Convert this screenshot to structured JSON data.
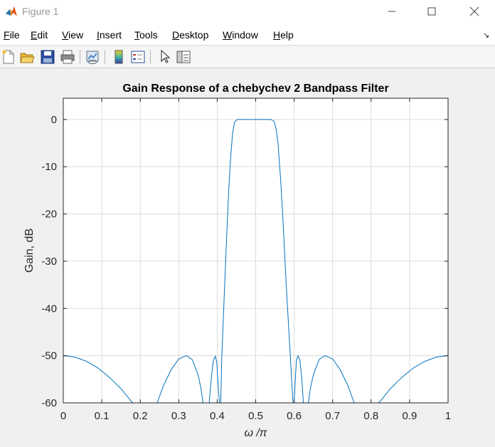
{
  "window": {
    "title": "Figure 1"
  },
  "menu": {
    "items": [
      {
        "acc": "F",
        "rest": "ile"
      },
      {
        "acc": "E",
        "rest": "dit"
      },
      {
        "acc": "V",
        "rest": "iew"
      },
      {
        "acc": "I",
        "rest": "nsert"
      },
      {
        "acc": "T",
        "rest": "ools"
      },
      {
        "acc": "D",
        "rest": "esktop"
      },
      {
        "acc": "W",
        "rest": "indow"
      },
      {
        "acc": "H",
        "rest": "elp"
      }
    ]
  },
  "toolbar": {
    "icons": [
      "new-figure-icon",
      "open-file-icon",
      "save-icon",
      "print-icon",
      "link-plot-icon",
      "insert-colorbar-icon",
      "insert-legend-icon",
      "edit-plot-arrow-icon",
      "property-inspector-icon"
    ]
  },
  "chart_data": {
    "type": "line",
    "title": "Gain Response of a chebychev 2 Bandpass Filter",
    "xlabel": "ω /π",
    "ylabel": "Gain, dB",
    "xlim": [
      0,
      1
    ],
    "ylim": [
      -60,
      4.5
    ],
    "xticks": [
      "0",
      "0.1",
      "0.2",
      "0.3",
      "0.4",
      "0.5",
      "0.6",
      "0.7",
      "0.8",
      "0.9",
      "1"
    ],
    "yticks": [
      "0",
      "-10",
      "-20",
      "-30",
      "-40",
      "-50",
      "-60"
    ],
    "grid": true,
    "line_color": "#0072bd",
    "series": [
      {
        "segments": [
          [
            [
              0,
              -50
            ],
            [
              0.03,
              -50.3
            ],
            [
              0.06,
              -51.2
            ],
            [
              0.09,
              -52.6
            ],
            [
              0.12,
              -54.6
            ],
            [
              0.15,
              -57.0
            ],
            [
              0.17,
              -59.0
            ],
            [
              0.18,
              -60
            ]
          ],
          [
            [
              0.244,
              -60
            ],
            [
              0.26,
              -56.4
            ],
            [
              0.28,
              -53.0
            ],
            [
              0.3,
              -50.7
            ],
            [
              0.32,
              -50.0
            ],
            [
              0.335,
              -50.8
            ],
            [
              0.35,
              -54.0
            ],
            [
              0.358,
              -57.0
            ],
            [
              0.363,
              -60
            ]
          ],
          [
            [
              0.379,
              -60
            ],
            [
              0.385,
              -54.5
            ],
            [
              0.39,
              -51.0
            ],
            [
              0.395,
              -50.1
            ],
            [
              0.399,
              -51.5
            ],
            [
              0.403,
              -57.0
            ],
            [
              0.406,
              -60
            ]
          ],
          [
            [
              0.409,
              -60
            ],
            [
              0.412,
              -50.0
            ],
            [
              0.415,
              -44.0
            ],
            [
              0.42,
              -34.0
            ],
            [
              0.425,
              -24.0
            ],
            [
              0.43,
              -15.0
            ],
            [
              0.435,
              -8.0
            ],
            [
              0.44,
              -3.0
            ],
            [
              0.445,
              -0.6
            ],
            [
              0.452,
              0
            ],
            [
              0.54,
              0
            ],
            [
              0.548,
              -0.4
            ],
            [
              0.553,
              -2.0
            ],
            [
              0.558,
              -5.0
            ],
            [
              0.565,
              -13.0
            ],
            [
              0.57,
              -20.0
            ],
            [
              0.575,
              -28.0
            ],
            [
              0.58,
              -36.0
            ],
            [
              0.585,
              -43.0
            ],
            [
              0.59,
              -50.0
            ],
            [
              0.594,
              -56.0
            ],
            [
              0.597,
              -60
            ]
          ],
          [
            [
              0.6,
              -60
            ],
            [
              0.603,
              -55.0
            ],
            [
              0.606,
              -51.0
            ],
            [
              0.61,
              -50.0
            ],
            [
              0.615,
              -51.0
            ],
            [
              0.62,
              -55.0
            ],
            [
              0.624,
              -60
            ]
          ],
          [
            [
              0.637,
              -60
            ],
            [
              0.642,
              -57.0
            ],
            [
              0.65,
              -54.0
            ],
            [
              0.665,
              -50.8
            ],
            [
              0.68,
              -50.0
            ],
            [
              0.7,
              -50.7
            ],
            [
              0.72,
              -53.0
            ],
            [
              0.74,
              -56.4
            ],
            [
              0.756,
              -60
            ]
          ],
          [
            [
              0.82,
              -60
            ],
            [
              0.83,
              -59.0
            ],
            [
              0.85,
              -57.0
            ],
            [
              0.88,
              -54.6
            ],
            [
              0.91,
              -52.6
            ],
            [
              0.94,
              -51.2
            ],
            [
              0.97,
              -50.3
            ],
            [
              1,
              -50
            ]
          ]
        ]
      }
    ]
  }
}
